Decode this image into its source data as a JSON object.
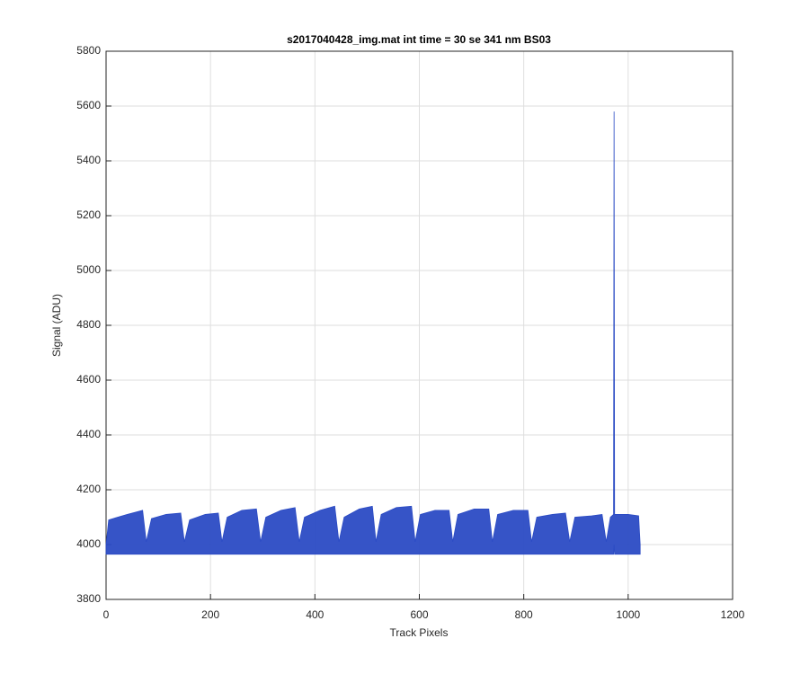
{
  "chart_data": {
    "type": "band",
    "title": "s2017040428_img.mat int time = 30 se  341 nm BS03",
    "xlabel": "Track Pixels",
    "ylabel": "Signal (ADU)",
    "color": "#2b4bc4",
    "grid": true,
    "xlim": [
      0,
      1200
    ],
    "xticks": [
      0,
      200,
      400,
      600,
      800,
      1000,
      1200
    ],
    "ylim": [
      3800,
      5800
    ],
    "yticks": [
      3800,
      4000,
      4200,
      4400,
      4600,
      4800,
      5000,
      5200,
      5400,
      5600,
      5800
    ],
    "x": [
      0,
      5,
      40,
      70,
      77,
      87,
      115,
      143,
      150,
      160,
      190,
      215,
      222,
      232,
      260,
      288,
      296,
      306,
      335,
      362,
      370,
      380,
      410,
      438,
      446,
      456,
      485,
      510,
      517,
      527,
      556,
      585,
      592,
      602,
      630,
      657,
      664,
      674,
      705,
      733,
      740,
      750,
      780,
      808,
      815,
      825,
      855,
      880,
      888,
      898,
      930,
      950,
      958,
      966,
      972,
      973,
      974,
      1000,
      1020,
      1023
    ],
    "high": [
      4000,
      4090,
      4110,
      4125,
      4010,
      4095,
      4110,
      4115,
      4010,
      4090,
      4110,
      4115,
      4010,
      4100,
      4125,
      4130,
      4010,
      4100,
      4125,
      4135,
      4010,
      4100,
      4125,
      4140,
      4010,
      4100,
      4130,
      4140,
      4010,
      4110,
      4135,
      4140,
      4010,
      4110,
      4125,
      4125,
      4010,
      4110,
      4130,
      4130,
      4010,
      4110,
      4125,
      4125,
      4010,
      4100,
      4110,
      4115,
      4010,
      4100,
      4105,
      4110,
      4010,
      4100,
      4110,
      5580,
      4110,
      4110,
      4105,
      4000
    ],
    "low": [
      3965,
      3965,
      3965,
      3965,
      3965,
      3965,
      3965,
      3965,
      3965,
      3965,
      3965,
      3965,
      3965,
      3965,
      3965,
      3965,
      3965,
      3965,
      3965,
      3965,
      3965,
      3965,
      3965,
      3965,
      3965,
      3965,
      3965,
      3965,
      3965,
      3965,
      3965,
      3965,
      3965,
      3965,
      3965,
      3965,
      3965,
      3965,
      3965,
      3965,
      3965,
      3965,
      3965,
      3965,
      3965,
      3965,
      3965,
      3965,
      3965,
      3965,
      3965,
      3965,
      3965,
      3965,
      3965,
      4000,
      3965,
      3965,
      3965,
      3965
    ]
  }
}
